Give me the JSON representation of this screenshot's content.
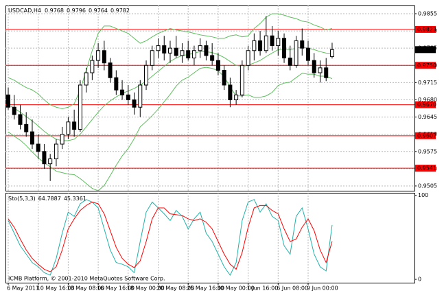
{
  "chart_data": {
    "type": "candlestick",
    "title": "USDCAD,H4",
    "footer": "ICMB Platform, © 2001-2010 MetaQuotes Software Corp.",
    "categories": [
      "6 May 2011",
      null,
      null,
      null,
      null,
      "10 May 16:00",
      null,
      null,
      null,
      null,
      "13 May 08:00",
      null,
      null,
      null,
      null,
      "16 May 16:00",
      null,
      null,
      null,
      null,
      "18 May 00:00",
      null,
      null,
      null,
      null,
      "20 May 08:00",
      null,
      null,
      null,
      null,
      "25 May 16:00",
      null,
      null,
      null,
      null,
      "30 May 00:00",
      null,
      null,
      null,
      null,
      "1 Jun 16:00",
      null,
      null,
      null,
      null,
      "6 Jun 08:00",
      null,
      null,
      null,
      null,
      "9 Jun 00:00",
      null,
      null,
      null,
      null
    ],
    "open": [
      0.969,
      0.9665,
      0.965,
      0.963,
      0.9615,
      0.959,
      0.9575,
      0.955,
      0.956,
      0.959,
      0.961,
      0.9635,
      0.962,
      0.971,
      0.9735,
      0.976,
      0.978,
      0.9755,
      0.9725,
      0.97,
      0.969,
      0.968,
      0.9665,
      0.971,
      0.975,
      0.978,
      0.979,
      0.9775,
      0.9785,
      0.977,
      0.978,
      0.9765,
      0.978,
      0.979,
      0.977,
      0.976,
      0.974,
      0.971,
      0.968,
      0.969,
      0.975,
      0.978,
      0.98,
      0.978,
      0.981,
      0.979,
      0.9805,
      0.9765,
      0.975,
      0.98,
      0.9785,
      0.976,
      0.9735,
      0.9745,
      0.9768
    ],
    "high": [
      0.9705,
      0.969,
      0.967,
      0.9655,
      0.964,
      0.961,
      0.959,
      0.957,
      0.96,
      0.9625,
      0.9645,
      0.966,
      0.972,
      0.9745,
      0.977,
      0.9795,
      0.98,
      0.9765,
      0.974,
      0.972,
      0.971,
      0.9695,
      0.972,
      0.976,
      0.979,
      0.9805,
      0.981,
      0.98,
      0.981,
      0.9795,
      0.98,
      0.979,
      0.9805,
      0.98,
      0.9795,
      0.9775,
      0.975,
      0.9725,
      0.97,
      0.976,
      0.979,
      0.9815,
      0.982,
      0.985,
      0.983,
      0.982,
      0.9815,
      0.979,
      0.981,
      0.9825,
      0.98,
      0.9775,
      0.976,
      0.9765,
      0.9796
    ],
    "low": [
      0.966,
      0.964,
      0.962,
      0.9605,
      0.958,
      0.956,
      0.954,
      0.9515,
      0.9545,
      0.958,
      0.96,
      0.9605,
      0.9615,
      0.9695,
      0.972,
      0.9745,
      0.974,
      0.9715,
      0.969,
      0.968,
      0.967,
      0.965,
      0.9645,
      0.97,
      0.974,
      0.9765,
      0.976,
      0.9755,
      0.9765,
      0.9755,
      0.976,
      0.975,
      0.9765,
      0.976,
      0.975,
      0.973,
      0.97,
      0.9665,
      0.967,
      0.9685,
      0.974,
      0.976,
      0.977,
      0.9775,
      0.978,
      0.977,
      0.9755,
      0.974,
      0.9745,
      0.977,
      0.975,
      0.9725,
      0.9715,
      0.9718,
      0.9764
    ],
    "close": [
      0.9665,
      0.965,
      0.963,
      0.9615,
      0.959,
      0.9575,
      0.955,
      0.956,
      0.959,
      0.961,
      0.9635,
      0.962,
      0.971,
      0.9735,
      0.976,
      0.978,
      0.9755,
      0.9725,
      0.97,
      0.969,
      0.968,
      0.9665,
      0.971,
      0.975,
      0.978,
      0.979,
      0.9775,
      0.9785,
      0.977,
      0.978,
      0.9765,
      0.978,
      0.979,
      0.977,
      0.976,
      0.974,
      0.971,
      0.968,
      0.969,
      0.975,
      0.978,
      0.98,
      0.978,
      0.981,
      0.979,
      0.9805,
      0.9765,
      0.975,
      0.98,
      0.9785,
      0.976,
      0.9735,
      0.9745,
      0.9725,
      0.9782
    ],
    "up_color": "#ffffff",
    "down_color": "#000000",
    "bands": {
      "color": "#5cbf5c",
      "upper": [
        0.9725,
        0.972,
        0.9712,
        0.9705,
        0.97,
        0.9692,
        0.968,
        0.967,
        0.9665,
        0.9662,
        0.9665,
        0.9672,
        0.97,
        0.974,
        0.978,
        0.9815,
        0.983,
        0.983,
        0.9825,
        0.982,
        0.9815,
        0.9805,
        0.9795,
        0.98,
        0.9808,
        0.9815,
        0.982,
        0.9825,
        0.9822,
        0.982,
        0.9818,
        0.9815,
        0.9812,
        0.981,
        0.9808,
        0.9805,
        0.9805,
        0.981,
        0.9812,
        0.9808,
        0.981,
        0.9825,
        0.9835,
        0.9848,
        0.9855,
        0.9855,
        0.9852,
        0.9848,
        0.9845,
        0.984,
        0.9838,
        0.9832,
        0.9828,
        0.9822,
        0.9825
      ],
      "middle": [
        0.967,
        0.9663,
        0.9655,
        0.9646,
        0.9637,
        0.9627,
        0.9616,
        0.9607,
        0.96,
        0.9597,
        0.9597,
        0.96,
        0.961,
        0.9625,
        0.964,
        0.9655,
        0.9668,
        0.9678,
        0.9686,
        0.9693,
        0.9698,
        0.9703,
        0.971,
        0.9718,
        0.9728,
        0.9738,
        0.9748,
        0.9758,
        0.9765,
        0.977,
        0.9772,
        0.9775,
        0.9778,
        0.9778,
        0.9776,
        0.9772,
        0.9766,
        0.9758,
        0.975,
        0.9748,
        0.975,
        0.9755,
        0.976,
        0.9768,
        0.9775,
        0.9782,
        0.9783,
        0.9782,
        0.9785,
        0.9787,
        0.9785,
        0.9782,
        0.9778,
        0.9775,
        0.9774
      ],
      "lower": [
        0.9615,
        0.9606,
        0.9598,
        0.9587,
        0.9574,
        0.9562,
        0.9552,
        0.9544,
        0.9535,
        0.9532,
        0.9529,
        0.9528,
        0.952,
        0.951,
        0.95,
        0.9495,
        0.9506,
        0.9526,
        0.9547,
        0.9566,
        0.9581,
        0.9601,
        0.9625,
        0.9636,
        0.9648,
        0.9661,
        0.9676,
        0.9691,
        0.9708,
        0.972,
        0.9726,
        0.9735,
        0.9744,
        0.9746,
        0.9744,
        0.9739,
        0.9727,
        0.9706,
        0.9688,
        0.9688,
        0.969,
        0.9685,
        0.9685,
        0.9688,
        0.9695,
        0.9709,
        0.9714,
        0.9716,
        0.9725,
        0.9734,
        0.9732,
        0.9732,
        0.9728,
        0.9728,
        0.9723
      ]
    },
    "levels": [
      {
        "value": 0.9823,
        "label": "0.9823"
      },
      {
        "value": 0.975,
        "label": "0.9750"
      },
      {
        "value": 0.967,
        "label": "0.9670"
      },
      {
        "value": 0.9607,
        "label": "0.9607"
      },
      {
        "value": 0.9541,
        "label": "0.9541"
      }
    ],
    "level_color": "#ff0000",
    "ylim": [
      0.94952,
      0.98717
    ],
    "yticks": [
      0.9855,
      {
        "value": 0.982,
        "label": "0.9820"
      },
      0.9785,
      {
        "value": 0.975,
        "label": "0.9750"
      },
      0.9715,
      {
        "value": 0.968,
        "label": "0.9680"
      },
      0.9645,
      {
        "value": 0.961,
        "label": "0.9610"
      },
      0.9575,
      {
        "value": 0.954,
        "label": "0.9540"
      },
      0.9505
    ],
    "grid": true,
    "stochastic": {
      "title": "Sto(5,3,3)",
      "ylim": [
        -4,
        103
      ],
      "yticks": [
        100,
        0
      ],
      "main_color": "#20b2aa",
      "signal_color": "#ff0000",
      "main": [
        70,
        55,
        40,
        30,
        20,
        15,
        8,
        5,
        25,
        55,
        80,
        75,
        90,
        95,
        92,
        85,
        60,
        35,
        20,
        18,
        15,
        8,
        45,
        80,
        92,
        85,
        78,
        70,
        82,
        75,
        60,
        72,
        80,
        55,
        45,
        30,
        15,
        5,
        20,
        70,
        92,
        95,
        80,
        90,
        75,
        70,
        40,
        30,
        75,
        85,
        60,
        30,
        15,
        10,
        64.7887
      ],
      "signal": [
        72,
        62,
        48,
        35,
        25,
        18,
        12,
        9,
        15,
        35,
        60,
        72,
        82,
        88,
        92,
        90,
        78,
        58,
        38,
        25,
        18,
        14,
        22,
        45,
        72,
        85,
        85,
        78,
        77,
        76,
        72,
        70,
        72,
        68,
        60,
        45,
        30,
        18,
        12,
        32,
        62,
        85,
        88,
        88,
        82,
        78,
        60,
        45,
        48,
        62,
        72,
        58,
        35,
        20,
        45.3361
      ]
    }
  }
}
